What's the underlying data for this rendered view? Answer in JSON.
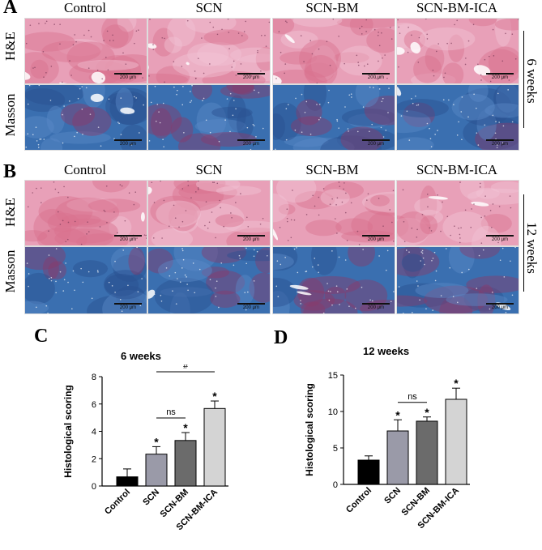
{
  "figure": {
    "panels": {
      "A": "A",
      "B": "B",
      "C": "C",
      "D": "D"
    },
    "columns": [
      "Control",
      "SCN",
      "SCN-BM",
      "SCN-BM-ICA"
    ],
    "rows": [
      "H&E",
      "Masson"
    ],
    "timepoints": {
      "A": "6 weeks",
      "B": "12 weeks"
    },
    "scale_bar_label": "200 μm",
    "colors": {
      "he": "#e8a0b8",
      "he_dark": "#d9708f",
      "masson": "#3a6fb0",
      "masson_dark": "#2a4f90",
      "masson_red": "#8a3a6a"
    }
  },
  "chart_data": [
    {
      "type": "bar",
      "title": "6 weeks",
      "ylabel": "Histological scoring",
      "xlabel": "",
      "categories": [
        "Control",
        "SCN",
        "SCN-BM",
        "SCN-BM-ICA"
      ],
      "values": [
        0.67,
        2.33,
        3.33,
        5.67
      ],
      "errors": [
        0.58,
        0.55,
        0.58,
        0.55
      ],
      "bar_colors": [
        "#000000",
        "#9a9aa8",
        "#6b6b6b",
        "#d4d4d4"
      ],
      "significance": [
        "",
        "*",
        "*",
        "*"
      ],
      "yticks": [
        0,
        2,
        4,
        6,
        8
      ],
      "ylim": [
        0,
        8
      ],
      "comparisons": [
        {
          "from": 1,
          "to": 2,
          "label": "ns"
        },
        {
          "from": 1,
          "to": 3,
          "label": "#"
        }
      ]
    },
    {
      "type": "bar",
      "title": "12 weeks",
      "ylabel": "Histological scoring",
      "xlabel": "",
      "categories": [
        "Control",
        "SCN",
        "SCN-BM",
        "SCN-BM-ICA"
      ],
      "values": [
        3.33,
        7.33,
        8.67,
        11.67
      ],
      "errors": [
        0.58,
        1.53,
        0.58,
        1.53
      ],
      "bar_colors": [
        "#000000",
        "#9a9aa8",
        "#6b6b6b",
        "#d4d4d4"
      ],
      "significance": [
        "",
        "*",
        "*",
        "*"
      ],
      "yticks": [
        0,
        5,
        10,
        15
      ],
      "ylim": [
        0,
        15
      ],
      "comparisons": [
        {
          "from": 1,
          "to": 2,
          "label": "ns"
        },
        {
          "from": 1,
          "to": 3,
          "label": "#"
        }
      ]
    }
  ]
}
